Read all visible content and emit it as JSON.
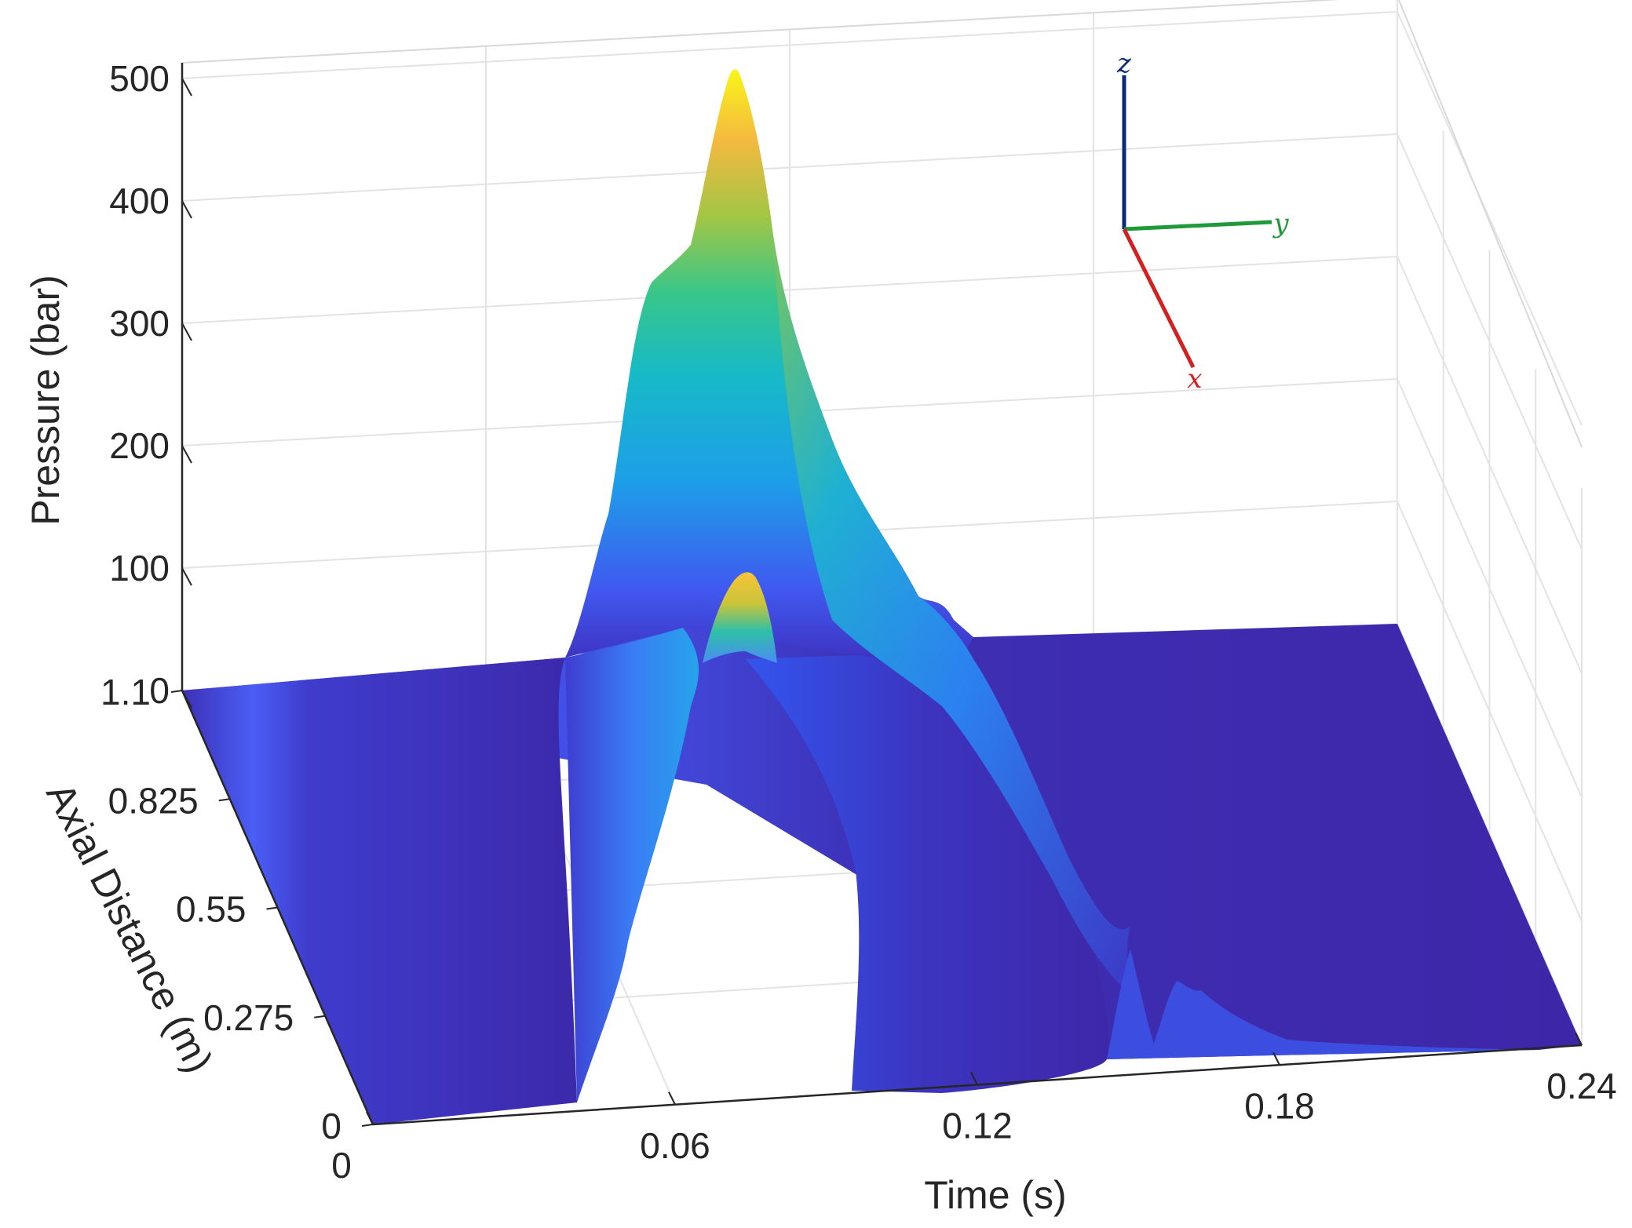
{
  "chart_data": {
    "type": "surface",
    "view": "3d",
    "colormap": "parula",
    "colormap_colors": [
      "#3e26a8",
      "#4354ec",
      "#2b84fb",
      "#17abdf",
      "#2ec2a0",
      "#9ec648",
      "#f7bb3d",
      "#f9fb15"
    ],
    "axes": {
      "x": {
        "label": "Time (s)",
        "lim": [
          0,
          0.24
        ],
        "ticks": [
          0,
          0.06,
          0.12,
          0.18,
          0.24
        ],
        "tick_labels": [
          "0",
          "0.06",
          "0.12",
          "0.18",
          "0.24"
        ]
      },
      "y": {
        "label": "Axial Distance (m)",
        "lim": [
          0,
          1.1
        ],
        "ticks": [
          0,
          0.275,
          0.55,
          0.825,
          1.1
        ],
        "tick_labels": [
          "0",
          "0.275",
          "0.55",
          "0.825",
          "1.1"
        ]
      },
      "z": {
        "label": "Pressure (bar)",
        "lim": [
          0,
          500
        ],
        "ticks": [
          0,
          100,
          200,
          300,
          400,
          500
        ],
        "tick_labels": [
          "0",
          "100",
          "200",
          "300",
          "400",
          "500"
        ]
      }
    },
    "grid": true,
    "box": true,
    "surface_summary": {
      "peak_pressure_near_far_end": 510,
      "peak_time_near_far_end": 0.065,
      "peak_pressure_near_zero_distance": 100,
      "baseline_pressure": 0,
      "pulse_start_time_at_zero_distance": 0.04,
      "pulse_end_time_at_zero_distance": 0.17
    },
    "orientation_triad": {
      "axes": [
        {
          "label": "z",
          "color": "#0a2a7a"
        },
        {
          "label": "y",
          "color": "#1f9a3a"
        },
        {
          "label": "x",
          "color": "#d42020"
        }
      ]
    }
  }
}
